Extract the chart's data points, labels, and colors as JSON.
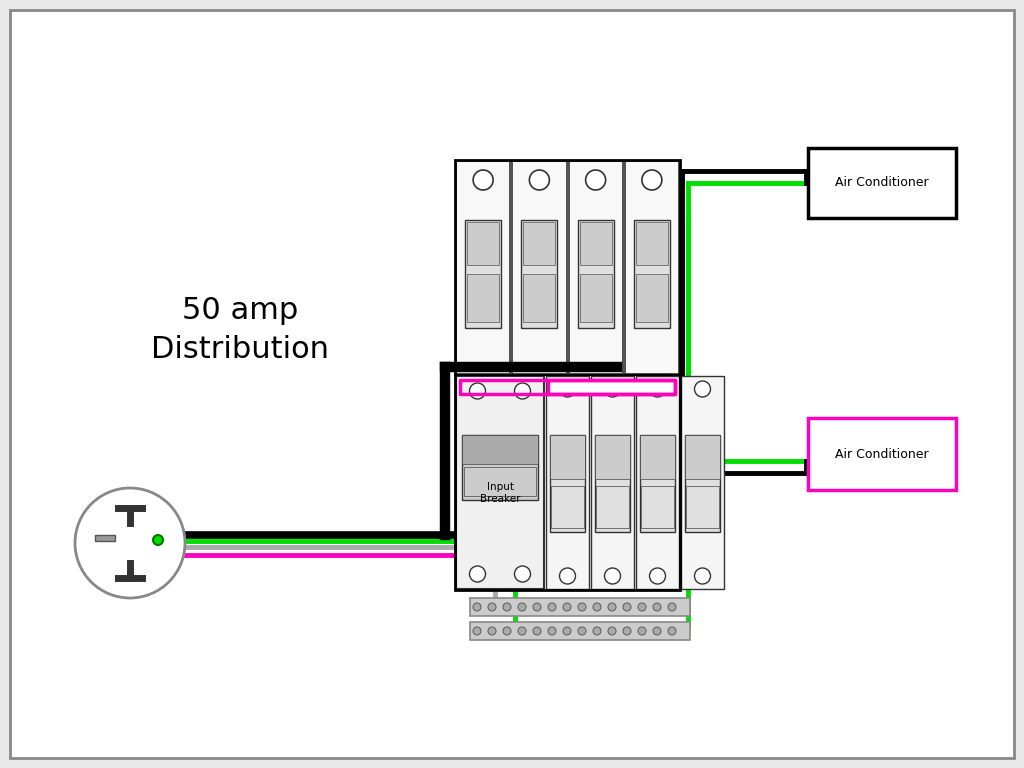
{
  "bg_color": "#e8e8e8",
  "inner_bg": "#ffffff",
  "label_50amp": "50 amp\nDistribution",
  "label_ac1": "Air Conditioner",
  "label_ac2": "Air Conditioner",
  "label_input": "Input\nBreaker",
  "wire_black": "#000000",
  "wire_green": "#00dd00",
  "wire_pink": "#ff00bb",
  "wire_gray": "#aaaaaa",
  "box_black_ec": "#000000",
  "box_pink_ec": "#ff00bb",
  "font_size_main": 22,
  "font_size_label": 9,
  "font_size_breaker": 7.5,
  "lw_wire": 3.5,
  "lw_thick": 5.5,
  "lw_thin": 2.5
}
